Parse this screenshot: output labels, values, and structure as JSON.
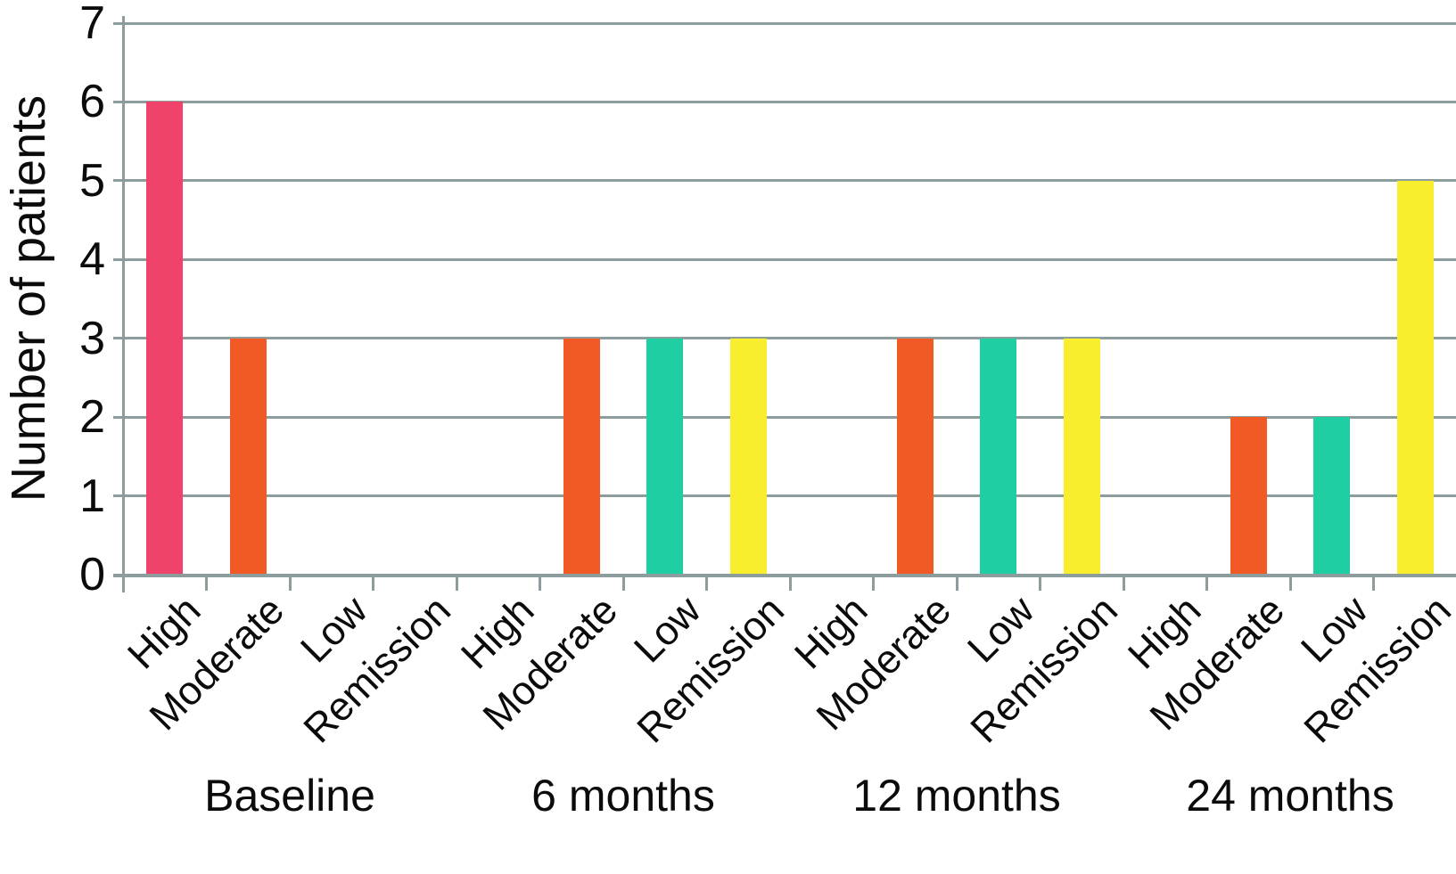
{
  "figure": {
    "background_color": "#ffffff",
    "grid_color": "#8d9c9c",
    "text_color": "#0b0b0b"
  },
  "chart_data": {
    "type": "bar",
    "title": "",
    "xlabel": "",
    "ylabel": "Number of patients",
    "ylim": [
      0,
      7
    ],
    "yticks": [
      0,
      1,
      2,
      3,
      4,
      5,
      6,
      7
    ],
    "grid": true,
    "legend_position": "none",
    "categories_per_group": [
      "High",
      "Moderate",
      "Low",
      "Remission"
    ],
    "category_colors": {
      "High": "#f0436b",
      "Moderate": "#f15a24",
      "Low": "#1fcea3",
      "Remission": "#f8ee2e"
    },
    "groups": [
      {
        "label": "Baseline",
        "values": {
          "High": 6,
          "Moderate": 3,
          "Low": 0,
          "Remission": 0
        }
      },
      {
        "label": "6 months",
        "values": {
          "High": 0,
          "Moderate": 3,
          "Low": 3,
          "Remission": 3
        }
      },
      {
        "label": "12 months",
        "values": {
          "High": 0,
          "Moderate": 3,
          "Low": 3,
          "Remission": 3
        }
      },
      {
        "label": "24 months",
        "values": {
          "High": 0,
          "Moderate": 2,
          "Low": 2,
          "Remission": 5
        }
      }
    ]
  }
}
